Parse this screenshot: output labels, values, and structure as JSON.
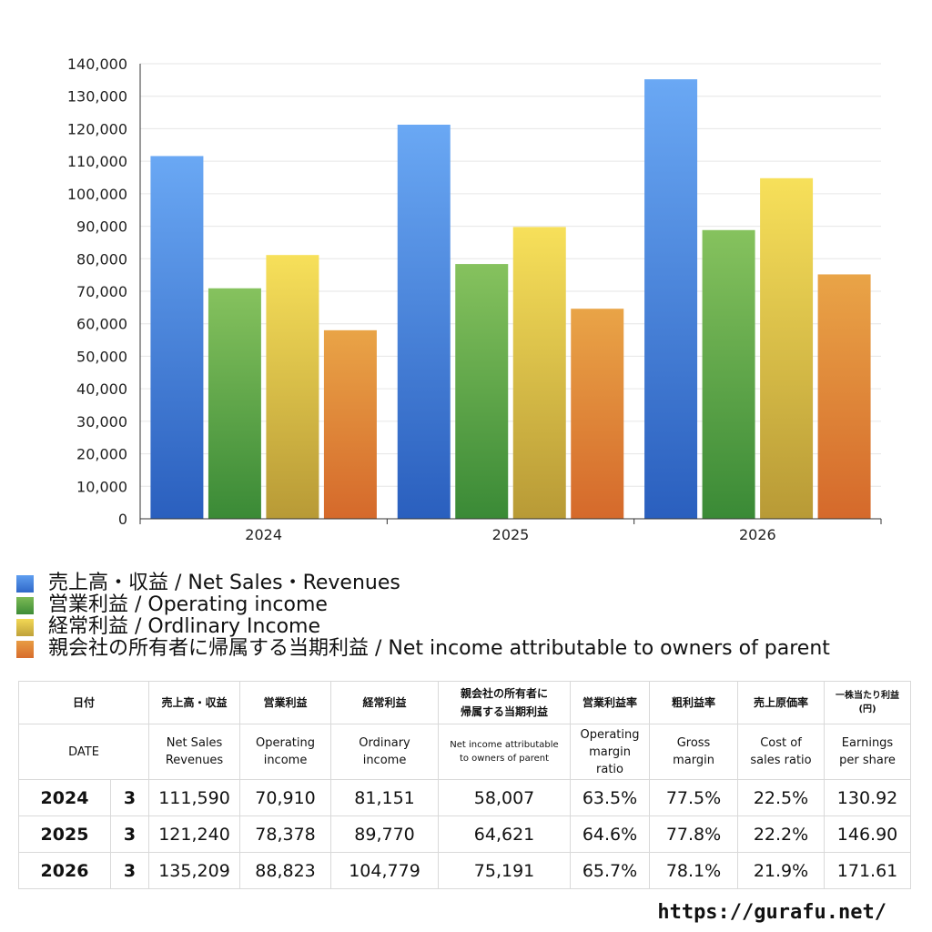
{
  "chart_data": {
    "type": "bar",
    "categories": [
      "2024",
      "2025",
      "2026"
    ],
    "series": [
      {
        "name": "売上高・収益 / Net Sales・Revenues",
        "values": [
          111590,
          121240,
          135209
        ],
        "color": "#3f7fd9"
      },
      {
        "name": "営業利益 / Operating income",
        "values": [
          70910,
          78378,
          88823
        ],
        "color": "#4e9e3e"
      },
      {
        "name": "経常利益 / Ordlinary Income",
        "values": [
          81151,
          89770,
          104779
        ],
        "color": "#d9c04a"
      },
      {
        "name": "親会社の所有者に帰属する当期利益 / Net income attributable to owners of parent",
        "values": [
          58007,
          64621,
          75191
        ],
        "color": "#e0873a"
      }
    ],
    "ylim": [
      0,
      140000
    ],
    "yticks": [
      "0",
      "10,000",
      "20,000",
      "30,000",
      "40,000",
      "50,000",
      "60,000",
      "70,000",
      "80,000",
      "90,000",
      "100,000",
      "110,000",
      "120,000",
      "130,000",
      "140,000"
    ],
    "grid": true,
    "legend_position": "bottom-left"
  },
  "table": {
    "header_jp": {
      "date": "日付",
      "sales": "売上高・収益",
      "op": "営業利益",
      "ord": "経常利益",
      "net_line1": "親会社の所有者に",
      "net_line2": "帰属する当期利益",
      "op_margin": "営業利益率",
      "gross": "粗利益率",
      "cost": "売上原価率",
      "eps_line1": "一株当たり利益",
      "eps_line2": "(円)"
    },
    "header_en": {
      "date": "DATE",
      "sales_line1": "Net Sales",
      "sales_line2": "Revenues",
      "op_line1": "Operating",
      "op_line2": "income",
      "ord_line1": "Ordinary",
      "ord_line2": "income",
      "net_line1": "Net income attributable",
      "net_line2": "to owners of parent",
      "op_margin_line1": "Operating",
      "op_margin_line2": "margin",
      "op_margin_line3": "ratio",
      "gross_line1": "Gross",
      "gross_line2": "margin",
      "cost_line1": "Cost of",
      "cost_line2": "sales ratio",
      "eps_line1": "Earnings",
      "eps_line2": "per share"
    },
    "rows": [
      {
        "year": "2024",
        "month": "3",
        "sales": "111,590",
        "op": "70,910",
        "ord": "81,151",
        "net": "58,007",
        "op_margin": "63.5%",
        "gross": "77.5%",
        "cost": "22.5%",
        "eps": "130.92"
      },
      {
        "year": "2025",
        "month": "3",
        "sales": "121,240",
        "op": "78,378",
        "ord": "89,770",
        "net": "64,621",
        "op_margin": "64.6%",
        "gross": "77.8%",
        "cost": "22.2%",
        "eps": "146.90"
      },
      {
        "year": "2026",
        "month": "3",
        "sales": "135,209",
        "op": "88,823",
        "ord": "104,779",
        "net": "75,191",
        "op_margin": "65.7%",
        "gross": "78.1%",
        "cost": "21.9%",
        "eps": "171.61"
      }
    ]
  },
  "footer": {
    "url": "https://gurafu.net/"
  }
}
